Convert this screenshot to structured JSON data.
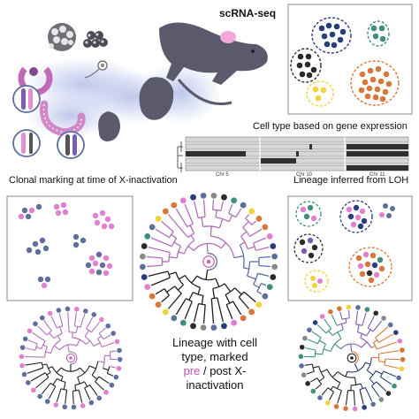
{
  "header": {
    "title": "scRNA-seq"
  },
  "captions": {
    "cell_type": "Cell type based on gene expression",
    "clonal": "Clonal marking at time of X-inactivation",
    "lineage_loh": "Lineage inferred from LOH"
  },
  "chromosomes": [
    "Chr 5",
    "Chr 10",
    "Chr 11"
  ],
  "bottom_text": {
    "line1": "Lineage with cell",
    "line2": "type, marked",
    "pre": "pre",
    "rest": " / post X-inactivation"
  },
  "colors": {
    "pink": "#e27fd0",
    "steel": "#5e6f9e",
    "mouse": "#5b5a6c",
    "purple_text": "#c04db5",
    "teal": "#3f8e7e",
    "navy": "#283e7a",
    "orange": "#d9773a",
    "yellow": "#f2d339",
    "dark": "#2b2b2b",
    "gray": "#8a8a8a"
  }
}
